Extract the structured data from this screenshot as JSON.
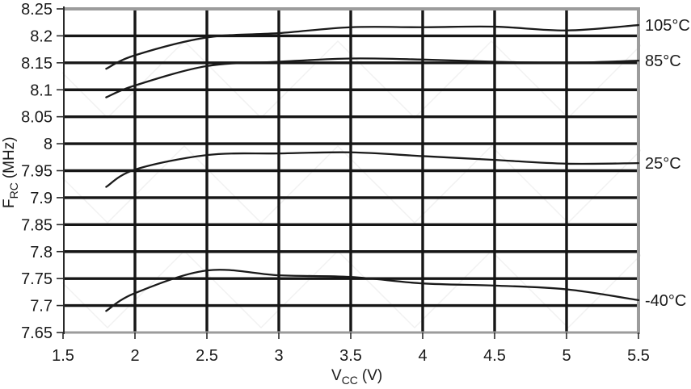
{
  "chart_data": {
    "type": "line",
    "title": "",
    "xlabel": "VCC (V)",
    "xlabel_base": "V",
    "xlabel_sub": "CC",
    "xlabel_unit": "(V)",
    "ylabel": "FRC (MHz)",
    "ylabel_base": "F",
    "ylabel_sub": "RC",
    "ylabel_unit": "(MHz)",
    "xlim": [
      1.5,
      5.5
    ],
    "ylim": [
      7.65,
      8.25
    ],
    "grid": true,
    "legend_position": "right-edge-curve-labels",
    "x_tick_values": [
      1.5,
      2,
      2.5,
      3,
      3.5,
      4,
      4.5,
      5,
      5.5
    ],
    "x_tick_labels": [
      "1.5",
      "2",
      "2.5",
      "3",
      "3.5",
      "4",
      "4.5",
      "5",
      "5.5"
    ],
    "y_tick_values": [
      8.25,
      8.2,
      8.15,
      8.1,
      8.05,
      8,
      7.95,
      7.9,
      7.85,
      7.8,
      7.75,
      7.7,
      7.65
    ],
    "y_tick_labels": [
      "8.25",
      "8.2",
      "8.15",
      "8.1",
      "8.05",
      "8",
      "7.95",
      "7.9",
      "7.85",
      "7.8",
      "7.75",
      "7.7",
      "7.65"
    ],
    "x": [
      1.8,
      2.0,
      2.5,
      3.0,
      3.5,
      4.0,
      4.5,
      5.0,
      5.5
    ],
    "series": [
      {
        "name": "105°C",
        "values": [
          8.139,
          8.164,
          8.197,
          8.205,
          8.216,
          8.216,
          8.217,
          8.21,
          8.22
        ]
      },
      {
        "name": "85°C",
        "values": [
          8.086,
          8.108,
          8.144,
          8.152,
          8.158,
          8.156,
          8.152,
          8.15,
          8.154
        ]
      },
      {
        "name": "25°C",
        "values": [
          7.92,
          7.952,
          7.979,
          7.982,
          7.984,
          7.977,
          7.97,
          7.963,
          7.964
        ]
      },
      {
        "name": "-40°C",
        "values": [
          7.69,
          7.723,
          7.765,
          7.756,
          7.753,
          7.741,
          7.737,
          7.73,
          7.71
        ]
      }
    ],
    "colors": {
      "line": "#1a1a1a",
      "grid": "#161616",
      "border": "#9c9c9c",
      "axis": "#2a2a2a",
      "text": "#1a1a1a",
      "background": "#ffffff",
      "watermark": "#f1f1f1"
    }
  }
}
